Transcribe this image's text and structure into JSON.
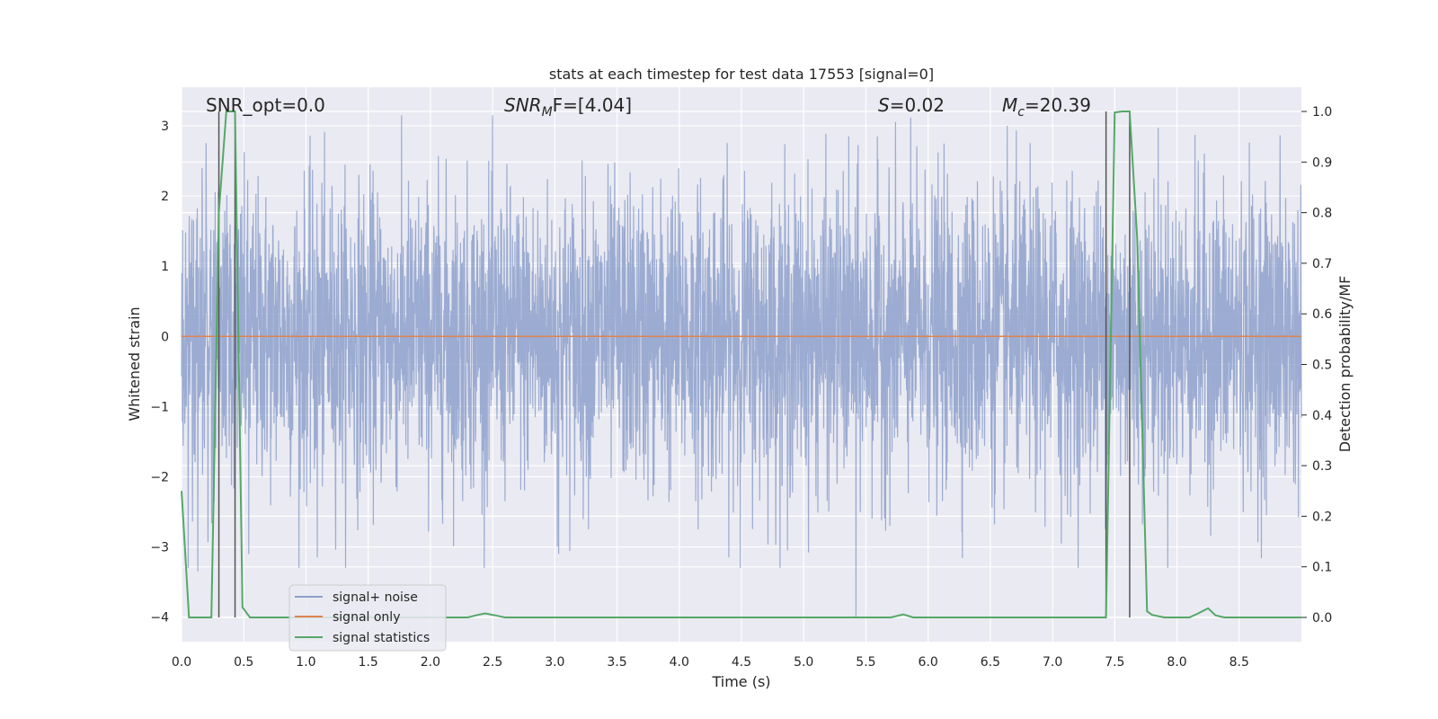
{
  "chart_data": {
    "type": "line",
    "title": "stats at each timestep for test data 17553 [signal=0]",
    "xlabel": "Time (s)",
    "ylabel_left": "Whitened strain",
    "ylabel_right": "Detection probability/MF",
    "xlim": [
      0.0,
      9.0
    ],
    "ylim_left": [
      -4.35,
      3.55
    ],
    "ylim_right": [
      -0.048,
      1.048
    ],
    "x_ticks": [
      0.0,
      0.5,
      1.0,
      1.5,
      2.0,
      2.5,
      3.0,
      3.5,
      4.0,
      4.5,
      5.0,
      5.5,
      6.0,
      6.5,
      7.0,
      7.5,
      8.0,
      8.5
    ],
    "x_tick_labels": [
      "0.0",
      "0.5",
      "1.0",
      "1.5",
      "2.0",
      "2.5",
      "3.0",
      "3.5",
      "4.0",
      "4.5",
      "5.0",
      "5.5",
      "6.0",
      "6.5",
      "7.0",
      "7.5",
      "8.0",
      "8.5"
    ],
    "y_left_ticks": [
      -4,
      -3,
      -2,
      -1,
      0,
      1,
      2,
      3
    ],
    "y_left_tick_labels": [
      "−4",
      "−3",
      "−2",
      "−1",
      "0",
      "1",
      "2",
      "3"
    ],
    "y_right_ticks": [
      0.0,
      0.1,
      0.2,
      0.3,
      0.4,
      0.5,
      0.6,
      0.7,
      0.8,
      0.9,
      1.0
    ],
    "y_right_tick_labels": [
      "0.0",
      "0.1",
      "0.2",
      "0.3",
      "0.4",
      "0.5",
      "0.6",
      "0.7",
      "0.8",
      "0.9",
      "1.0"
    ],
    "grid": true,
    "annotations": {
      "snr_opt": "SNR_opt=0.0",
      "snr_mf_main": "SNR",
      "snr_mf_sub": "M",
      "snr_mf_rest": "F=[4.04]",
      "s_var": "S",
      "s_rest": "=0.02",
      "mc_main": "M",
      "mc_sub": "c",
      "mc_rest": "=20.39"
    },
    "vertical_lines": [
      0.3,
      0.43,
      7.43,
      7.62
    ],
    "legend": {
      "placement": "lower-left",
      "entries": [
        "signal+ noise",
        "signal only",
        "signal statistics"
      ]
    },
    "colors": {
      "noise": "#8da0cb",
      "signal_only": "#dd8452",
      "statistics": "#55a868",
      "vline": "#555555",
      "background": "#eaeaf2",
      "grid": "#ffffff"
    },
    "series": [
      {
        "name": "signal+ noise",
        "axis": "left",
        "description_values": "whitened strain noise, approx N(0,1), 2048 Hz",
        "notable_points": [
          [
            0.13,
            -3.35
          ],
          [
            0.54,
            -3.1
          ],
          [
            1.09,
            -3.15
          ],
          [
            3.03,
            -3.1
          ],
          [
            5.42,
            -4.0
          ],
          [
            4.87,
            -3.05
          ],
          [
            7.07,
            -2.95
          ]
        ]
      },
      {
        "name": "signal only",
        "axis": "left",
        "x": [
          0.0,
          9.0
        ],
        "y": [
          0.0,
          0.0
        ]
      },
      {
        "name": "signal statistics",
        "axis": "right",
        "x": [
          0.0,
          0.06,
          0.12,
          0.18,
          0.24,
          0.3,
          0.36,
          0.39,
          0.43,
          0.49,
          0.55,
          0.6,
          1.0,
          2.0,
          2.3,
          2.38,
          2.44,
          2.52,
          2.6,
          3.0,
          4.0,
          5.0,
          5.7,
          5.8,
          5.88,
          6.0,
          7.0,
          7.43,
          7.5,
          7.56,
          7.62,
          7.68,
          7.76,
          7.8,
          7.9,
          8.0,
          8.1,
          8.17,
          8.25,
          8.31,
          8.38,
          8.5,
          9.0
        ],
        "y": [
          0.25,
          0.0,
          0.0,
          0.0,
          0.0,
          0.8,
          1.0,
          1.0,
          1.0,
          0.02,
          0.0,
          0.0,
          0.0,
          0.0,
          0.0,
          0.005,
          0.008,
          0.004,
          0.0,
          0.0,
          0.0,
          0.0,
          0.0,
          0.006,
          0.0,
          0.0,
          0.0,
          0.0,
          0.998,
          1.0,
          1.0,
          0.75,
          0.012,
          0.005,
          0.0,
          0.0,
          0.0,
          0.008,
          0.018,
          0.004,
          0.0,
          0.0,
          0.0
        ]
      }
    ]
  }
}
